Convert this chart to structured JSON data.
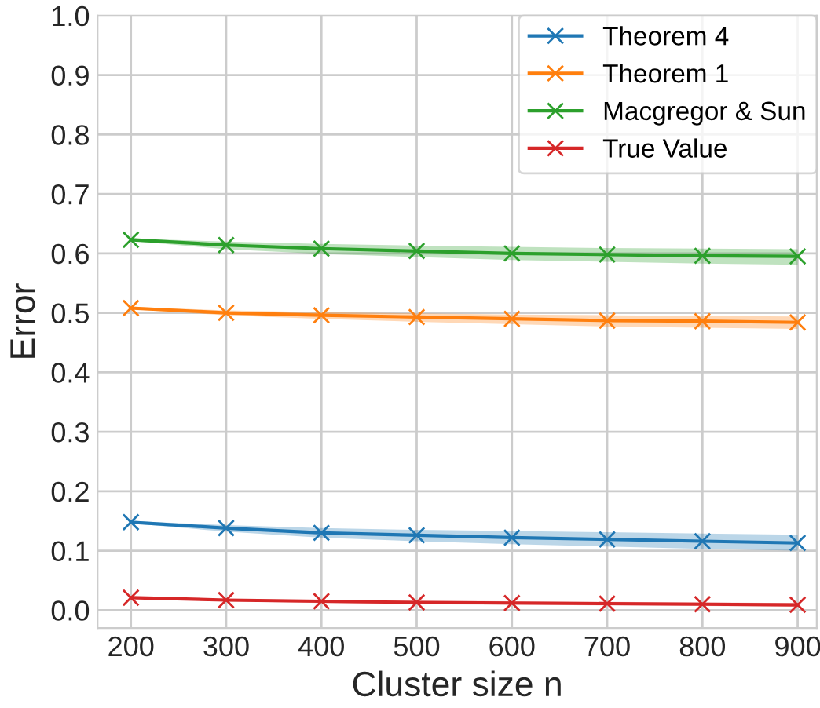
{
  "chart_data": {
    "type": "line",
    "xlabel": "Cluster size n",
    "ylabel": "Error",
    "x": [
      200,
      300,
      400,
      500,
      600,
      700,
      800,
      900
    ],
    "series": [
      {
        "name": "Theorem 4",
        "color": "#1f77b4",
        "values": [
          0.148,
          0.138,
          0.13,
          0.126,
          0.122,
          0.119,
          0.116,
          0.113
        ],
        "lower": [
          0.146,
          0.132,
          0.122,
          0.116,
          0.111,
          0.107,
          0.103,
          0.1
        ],
        "upper": [
          0.15,
          0.143,
          0.138,
          0.135,
          0.133,
          0.131,
          0.129,
          0.127
        ]
      },
      {
        "name": "Theorem 1",
        "color": "#ff7f0e",
        "values": [
          0.508,
          0.5,
          0.496,
          0.493,
          0.49,
          0.487,
          0.486,
          0.484
        ],
        "lower": [
          0.506,
          0.496,
          0.49,
          0.485,
          0.481,
          0.477,
          0.475,
          0.473
        ],
        "upper": [
          0.51,
          0.504,
          0.501,
          0.499,
          0.497,
          0.496,
          0.495,
          0.494
        ]
      },
      {
        "name": "Macgregor & Sun",
        "color": "#2ca02c",
        "values": [
          0.623,
          0.614,
          0.608,
          0.604,
          0.6,
          0.598,
          0.596,
          0.595
        ],
        "lower": [
          0.621,
          0.607,
          0.599,
          0.594,
          0.589,
          0.586,
          0.583,
          0.581
        ],
        "upper": [
          0.625,
          0.62,
          0.616,
          0.613,
          0.611,
          0.609,
          0.608,
          0.607
        ]
      },
      {
        "name": "True Value",
        "color": "#d62728",
        "values": [
          0.021,
          0.017,
          0.015,
          0.013,
          0.012,
          0.011,
          0.01,
          0.009
        ],
        "lower": [
          0.02,
          0.015,
          0.012,
          0.01,
          0.009,
          0.008,
          0.007,
          0.006
        ],
        "upper": [
          0.022,
          0.019,
          0.017,
          0.016,
          0.015,
          0.014,
          0.013,
          0.012
        ]
      }
    ],
    "xlim": [
      165,
      920
    ],
    "ylim": [
      -0.03,
      1.0
    ],
    "xticks": [
      200,
      300,
      400,
      500,
      600,
      700,
      800,
      900
    ],
    "yticks": [
      {
        "value": 0,
        "label": "0.0"
      },
      0.1,
      0.2,
      0.3,
      0.4,
      0.5,
      0.6,
      0.7,
      0.8,
      0.9,
      {
        "value": 1,
        "label": "1.0"
      }
    ],
    "grid": true,
    "legend": "top right",
    "marker": "cross",
    "line_style": "solid"
  }
}
